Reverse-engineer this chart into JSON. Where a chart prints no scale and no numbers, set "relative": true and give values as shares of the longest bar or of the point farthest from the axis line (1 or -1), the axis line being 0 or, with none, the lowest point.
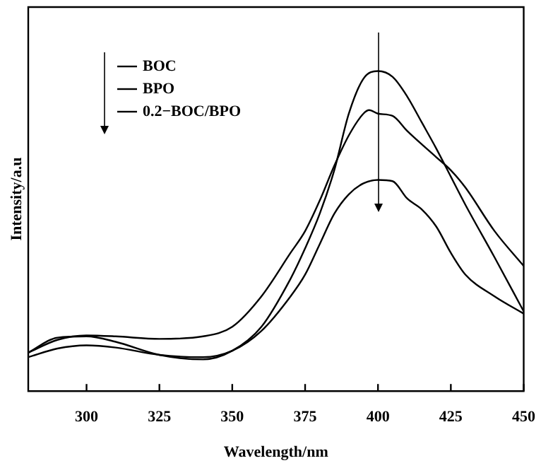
{
  "chart_data": {
    "type": "line",
    "xlabel": "Wavelength/nm",
    "ylabel": "Intensity/a.u",
    "relative": true,
    "xlim": [
      280,
      450
    ],
    "xticks": [
      300,
      325,
      350,
      375,
      400,
      425,
      450
    ],
    "grid": false,
    "legend": "top left",
    "marker": "none",
    "line_style": "solid",
    "series": [
      {
        "name": "BOC",
        "color": "#000000",
        "x": [
          280,
          290,
          300,
          310,
          325,
          340,
          350,
          360,
          370,
          375,
          380,
          385,
          390,
          395,
          400,
          405,
          410,
          415,
          420,
          425,
          430,
          440,
          450
        ],
        "values": [
          0.12,
          0.167,
          0.171,
          0.154,
          0.113,
          0.099,
          0.126,
          0.201,
          0.351,
          0.446,
          0.554,
          0.69,
          0.867,
          0.976,
          1,
          0.982,
          0.921,
          0.84,
          0.758,
          0.67,
          0.582,
          0.418,
          0.249
        ]
      },
      {
        "name": "BPO",
        "color": "#000000",
        "x": [
          280,
          290,
          300,
          310,
          325,
          340,
          350,
          360,
          370,
          375,
          380,
          385,
          390,
          395,
          397,
          400,
          405,
          410,
          420,
          425,
          430,
          440,
          450
        ],
        "values": [
          0.12,
          0.16,
          0.174,
          0.171,
          0.163,
          0.171,
          0.201,
          0.296,
          0.432,
          0.5,
          0.595,
          0.704,
          0.799,
          0.867,
          0.878,
          0.867,
          0.86,
          0.813,
          0.731,
          0.69,
          0.636,
          0.5,
          0.391
        ]
      },
      {
        "name": "0.2−BOC/BPO",
        "color": "#000000",
        "x": [
          280,
          290,
          300,
          310,
          325,
          340,
          350,
          360,
          370,
          375,
          380,
          385,
          390,
          395,
          400,
          405,
          410,
          415,
          420,
          425,
          430,
          440,
          450
        ],
        "values": [
          0.106,
          0.133,
          0.143,
          0.136,
          0.113,
          0.106,
          0.126,
          0.188,
          0.296,
          0.364,
          0.459,
          0.554,
          0.615,
          0.649,
          0.66,
          0.656,
          0.602,
          0.568,
          0.514,
          0.432,
          0.364,
          0.296,
          0.242
        ]
      }
    ]
  }
}
